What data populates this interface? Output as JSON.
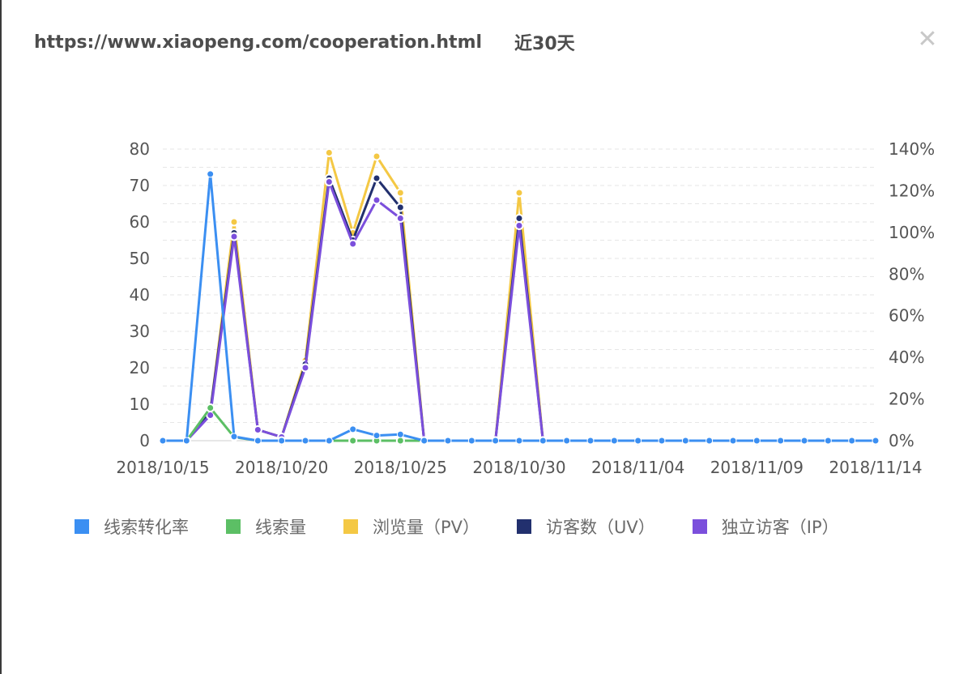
{
  "header": {
    "url": "https://www.xiaopeng.com/cooperation.html",
    "period": "近30天",
    "close_icon": "close-icon"
  },
  "chart_data": {
    "type": "line",
    "x": [
      "2018/10/15",
      "2018/10/16",
      "2018/10/17",
      "2018/10/18",
      "2018/10/19",
      "2018/10/20",
      "2018/10/21",
      "2018/10/22",
      "2018/10/23",
      "2018/10/24",
      "2018/10/25",
      "2018/10/26",
      "2018/10/27",
      "2018/10/28",
      "2018/10/29",
      "2018/10/30",
      "2018/10/31",
      "2018/11/01",
      "2018/11/02",
      "2018/11/03",
      "2018/11/04",
      "2018/11/05",
      "2018/11/06",
      "2018/11/07",
      "2018/11/08",
      "2018/11/09",
      "2018/11/10",
      "2018/11/11",
      "2018/11/12",
      "2018/11/13",
      "2018/11/14"
    ],
    "x_tick_labels": [
      "2018/10/15",
      "2018/10/20",
      "2018/10/25",
      "2018/10/30",
      "2018/11/04",
      "2018/11/09",
      "2018/11/14"
    ],
    "y_left_ticks": [
      "80",
      "70",
      "60",
      "50",
      "40",
      "30",
      "20",
      "10",
      "0"
    ],
    "y_right_ticks": [
      "140%",
      "120%",
      "100%",
      "80%",
      "60%",
      "40%",
      "20%",
      "0%"
    ],
    "ylim_left": [
      0,
      80
    ],
    "ylim_right": [
      0,
      140
    ],
    "grid": true,
    "legend_position": "bottom",
    "series": [
      {
        "name": "线索转化率",
        "axis": "right",
        "color": "#3b8ff2",
        "values": [
          0,
          0,
          128,
          2,
          0,
          0,
          0,
          0,
          5.5,
          2.5,
          3,
          0,
          0,
          0,
          0,
          0,
          0,
          0,
          0,
          0,
          0,
          0,
          0,
          0,
          0,
          0,
          0,
          0,
          0,
          0,
          0
        ]
      },
      {
        "name": "线索量",
        "axis": "left",
        "color": "#5cbf65",
        "values": [
          0,
          0,
          9,
          1,
          0,
          0,
          0,
          0,
          0,
          0,
          0,
          0,
          0,
          0,
          0,
          0,
          0,
          0,
          0,
          0,
          0,
          0,
          0,
          0,
          0,
          0,
          0,
          0,
          0,
          0,
          0
        ]
      },
      {
        "name": "浏览量（PV）",
        "axis": "left",
        "color": "#f4c844",
        "values": [
          0,
          0,
          8,
          60,
          3,
          1,
          22,
          79,
          57,
          78,
          68,
          0,
          0,
          0,
          0,
          68,
          0,
          0,
          0,
          0,
          0,
          0,
          0,
          0,
          0,
          0,
          0,
          0,
          0,
          0,
          0
        ]
      },
      {
        "name": "访客数（UV）",
        "axis": "left",
        "color": "#22306e",
        "values": [
          0,
          0,
          8,
          57,
          3,
          1,
          21,
          72,
          55,
          72,
          64,
          0,
          0,
          0,
          0,
          61,
          0,
          0,
          0,
          0,
          0,
          0,
          0,
          0,
          0,
          0,
          0,
          0,
          0,
          0,
          0
        ]
      },
      {
        "name": "独立访客（IP）",
        "axis": "left",
        "color": "#7b4fdc",
        "values": [
          0,
          0,
          7,
          56,
          3,
          1,
          20,
          71,
          54,
          66,
          61,
          0,
          0,
          0,
          0,
          59,
          0,
          0,
          0,
          0,
          0,
          0,
          0,
          0,
          0,
          0,
          0,
          0,
          0,
          0,
          0
        ]
      }
    ]
  }
}
